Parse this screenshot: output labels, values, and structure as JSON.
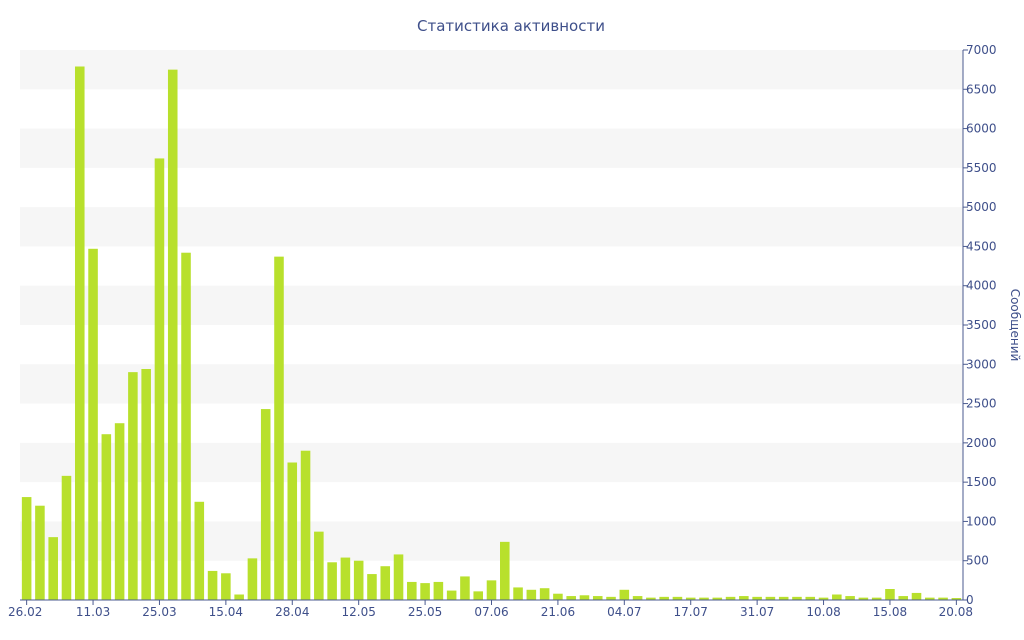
{
  "chart_data": {
    "type": "bar",
    "title": "Статистика активности",
    "ylabel": "Сообщений",
    "xlabel": "",
    "ylim": [
      0,
      7000
    ],
    "y_ticks": [
      0,
      500,
      1000,
      1500,
      2000,
      2500,
      3000,
      3500,
      4000,
      4500,
      5000,
      5500,
      6000,
      6500,
      7000
    ],
    "y_axis_side": "right",
    "x_tick_labels": [
      {
        "label": "26.02",
        "index": 0
      },
      {
        "label": "11.03",
        "index": 5
      },
      {
        "label": "25.03",
        "index": 10
      },
      {
        "label": "15.04",
        "index": 15
      },
      {
        "label": "28.04",
        "index": 20
      },
      {
        "label": "12.05",
        "index": 25
      },
      {
        "label": "25.05",
        "index": 30
      },
      {
        "label": "07.06",
        "index": 35
      },
      {
        "label": "21.06",
        "index": 40
      },
      {
        "label": "04.07",
        "index": 45
      },
      {
        "label": "17.07",
        "index": 50
      },
      {
        "label": "31.07",
        "index": 55
      },
      {
        "label": "10.08",
        "index": 60
      },
      {
        "label": "15.08",
        "index": 65
      },
      {
        "label": "20.08",
        "index": 70
      }
    ],
    "values": [
      1310,
      1200,
      800,
      1580,
      6790,
      4470,
      2110,
      2250,
      2900,
      2940,
      5620,
      6750,
      4420,
      1250,
      370,
      340,
      70,
      530,
      2430,
      4370,
      1750,
      1900,
      870,
      480,
      540,
      500,
      330,
      430,
      580,
      230,
      215,
      230,
      120,
      300,
      110,
      250,
      740,
      160,
      130,
      150,
      80,
      50,
      60,
      50,
      40,
      130,
      50,
      30,
      40,
      40,
      30,
      30,
      30,
      40,
      50,
      40,
      40,
      40,
      40,
      40,
      30,
      70,
      50,
      30,
      30,
      140,
      50,
      90,
      30,
      30,
      25
    ],
    "grid": "alternating-bands",
    "legend": "none",
    "colors": {
      "bar": "#b8e02c",
      "text": "#3e4f8a",
      "band": "#f6f6f6"
    }
  }
}
